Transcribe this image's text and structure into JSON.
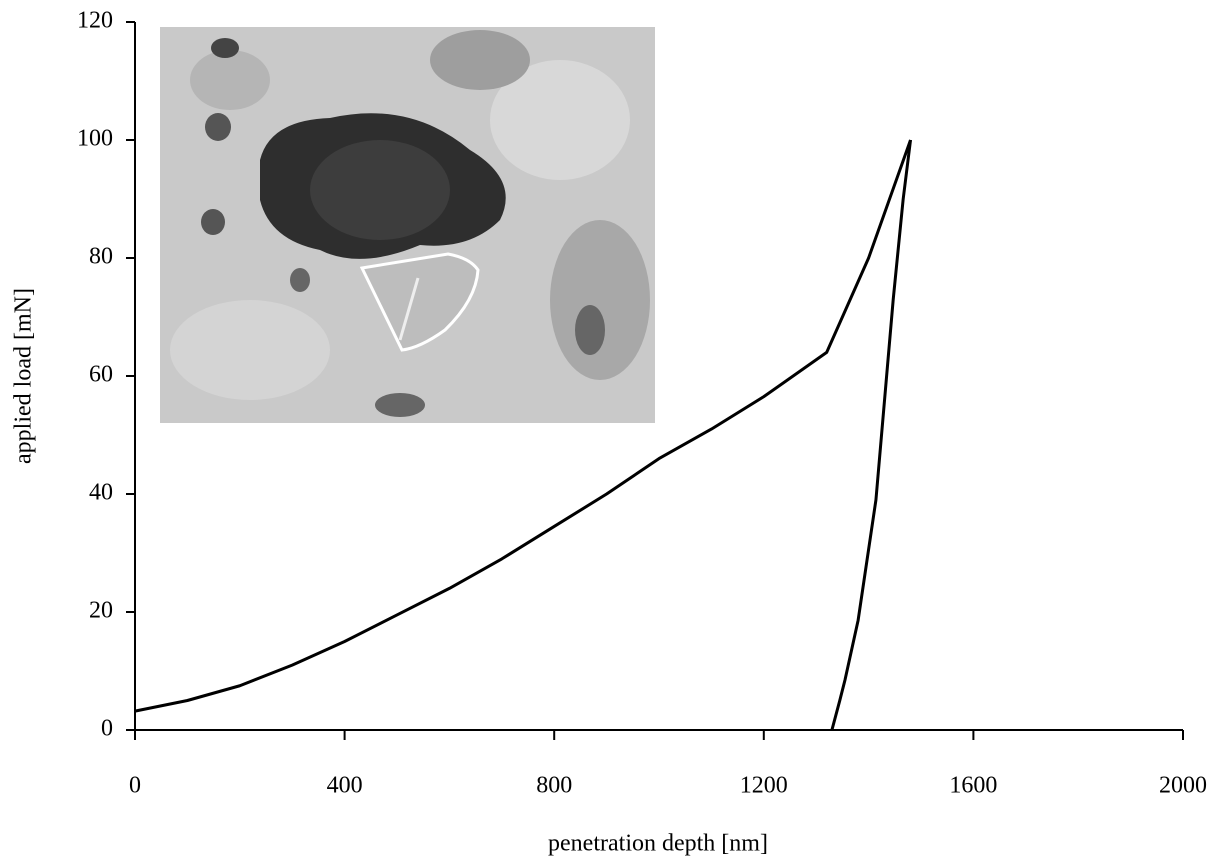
{
  "chart_data": {
    "type": "line",
    "xlabel": "penetration depth [nm]",
    "ylabel": "applied load [mN]",
    "xlim": [
      0,
      2000
    ],
    "xticks": [
      0,
      400,
      800,
      1200,
      1600,
      2000
    ],
    "ylim": [
      0,
      120
    ],
    "yticks": [
      0,
      20,
      40,
      60,
      80,
      100,
      120
    ],
    "grid": false,
    "series": [
      {
        "color": "#000000",
        "x": [
          0,
          100,
          200,
          300,
          400,
          500,
          600,
          700,
          800,
          900,
          1000,
          1100,
          1200,
          1320,
          1400,
          1480
        ],
        "values": [
          3.2,
          5,
          7.5,
          11,
          15,
          19.5,
          24,
          29,
          34.5,
          40,
          46,
          51,
          56.5,
          64,
          80,
          100
        ]
      },
      {
        "color": "#000000",
        "x": [
          1480,
          1466,
          1447,
          1414,
          1380,
          1355,
          1345,
          1330
        ],
        "values": [
          100,
          90,
          73,
          39,
          18.6,
          8.5,
          5,
          0
        ]
      }
    ]
  }
}
